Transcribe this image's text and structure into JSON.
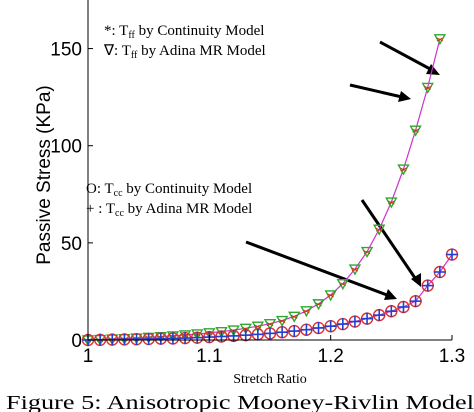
{
  "chart_data": {
    "type": "line",
    "title": "",
    "xlabel": "Stretch Ratio",
    "ylabel": "Passive Stress (KPa)",
    "xlim": [
      1.0,
      1.3
    ],
    "ylim": [
      0,
      175
    ],
    "xticks": [
      1.0,
      1.1,
      1.2,
      1.3
    ],
    "xtick_labels": [
      "1",
      "1.1",
      "1.2",
      "1.3"
    ],
    "yticks": [
      0,
      50,
      100,
      150
    ],
    "ytick_labels": [
      "0",
      "50",
      "100",
      "150"
    ],
    "grid": false,
    "legend_groups": [
      {
        "lines": [
          {
            "marker": "*",
            "sep": ": ",
            "sym": "T",
            "sub": "ff",
            "rest": " by Continuity Model"
          },
          {
            "marker": "∇",
            "sep": ": ",
            "sym": "T",
            "sub": "ff",
            "rest": " by Adina MR Model"
          }
        ]
      },
      {
        "lines": [
          {
            "marker": "O",
            "sep": ": ",
            "sym": "T",
            "sub": "cc",
            "rest": " by Continuity Model"
          },
          {
            "marker": "+",
            "sep": " : ",
            "sym": "T",
            "sub": "cc",
            "rest": " by Adina MR Model"
          }
        ]
      }
    ],
    "series": [
      {
        "marker": "triangle-down",
        "marker_color": "#2ea82e",
        "line_color": "#cc33cc",
        "x": [
          1.0,
          1.01,
          1.02,
          1.03,
          1.04,
          1.05,
          1.06,
          1.07,
          1.08,
          1.09,
          1.1,
          1.11,
          1.12,
          1.13,
          1.14,
          1.15,
          1.16,
          1.17,
          1.18,
          1.19,
          1.2,
          1.21,
          1.22,
          1.23,
          1.24,
          1.25,
          1.26,
          1.27,
          1.28,
          1.29
        ],
        "values": [
          0.0,
          0.2,
          0.5,
          0.7,
          1.0,
          1.4,
          1.7,
          2.1,
          2.6,
          3.1,
          3.7,
          4.3,
          5.1,
          6.0,
          7.1,
          8.4,
          10.0,
          12.2,
          15.0,
          18.6,
          23.2,
          29.0,
          36.5,
          45.5,
          57.0,
          71.0,
          88.0,
          108.0,
          130.0,
          155.0
        ]
      },
      {
        "marker": "circle-plus",
        "marker_color": "#e03030",
        "cross_color": "#2040d0",
        "line_color": "#cc33cc",
        "x": [
          1.0,
          1.01,
          1.02,
          1.03,
          1.04,
          1.05,
          1.06,
          1.07,
          1.08,
          1.09,
          1.1,
          1.11,
          1.12,
          1.13,
          1.14,
          1.15,
          1.16,
          1.17,
          1.18,
          1.19,
          1.2,
          1.21,
          1.22,
          1.23,
          1.24,
          1.25,
          1.26,
          1.27,
          1.28,
          1.29,
          1.3
        ],
        "values": [
          0.0,
          0.1,
          0.2,
          0.3,
          0.4,
          0.5,
          0.7,
          0.8,
          1.0,
          1.2,
          1.5,
          1.8,
          2.1,
          2.5,
          2.9,
          3.4,
          4.0,
          4.6,
          5.3,
          6.2,
          7.1,
          8.2,
          9.5,
          11.0,
          12.8,
          14.8,
          17.0,
          20.0,
          28.0,
          35.0,
          44.0
        ]
      }
    ]
  },
  "caption": "Figure 5:  Anisotropic Mooney-Rivlin Model"
}
